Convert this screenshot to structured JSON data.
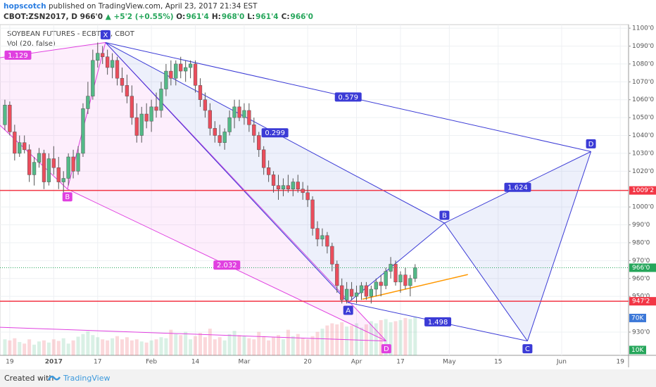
{
  "header": {
    "author": "hopscotch",
    "published": "published on TradingView.com, April 23, 2017 21:34 EST",
    "symbol": "CBOT:ZSN2017, D",
    "price": "966'0",
    "change": "▲ +5'2 (+0.55%)",
    "ohlc": [
      "O:",
      "961'4",
      "H:",
      "968'0",
      "L:",
      "961'4",
      "C:",
      "966'0"
    ]
  },
  "footer": {
    "created": "Created with",
    "brand": "TradingView"
  },
  "chart_data": {
    "type": "candlestick",
    "title": "SOYBEAN FUTURES - ECBT, D, CBOT",
    "indicator": "Vol (20, false)",
    "up_color": "#53b987",
    "down_color": "#eb4d5c",
    "x": [
      -1,
      0,
      1,
      2,
      3,
      4,
      5,
      6,
      7,
      8,
      9,
      10,
      11,
      12,
      13,
      14,
      15,
      16,
      17,
      18,
      19,
      20,
      21,
      22,
      23,
      24,
      25,
      26,
      27,
      28,
      29,
      30,
      31,
      32,
      33,
      34,
      35,
      36,
      37,
      38,
      39,
      40,
      41,
      42,
      43,
      44,
      45,
      46,
      47,
      48,
      49,
      50,
      51,
      52,
      53,
      54,
      55,
      56,
      57,
      58,
      59,
      60,
      61,
      62,
      63,
      64,
      65,
      66,
      67,
      68,
      69,
      70,
      71,
      72,
      73,
      74,
      75,
      76,
      77,
      78,
      79,
      80,
      81,
      82,
      83
    ],
    "open": [
      1046,
      1057,
      1042,
      1030,
      1036,
      1032,
      1018,
      1025,
      1030,
      1014,
      1027,
      1022,
      1014,
      1016,
      1028,
      1020,
      1030,
      1055,
      1062,
      1082,
      1086,
      1084,
      1078,
      1082,
      1072,
      1068,
      1062,
      1050,
      1040,
      1052,
      1048,
      1056,
      1054,
      1066,
      1076,
      1072,
      1080,
      1076,
      1078,
      1080,
      1068,
      1060,
      1054,
      1044,
      1040,
      1036,
      1042,
      1050,
      1056,
      1050,
      1054,
      1046,
      1040,
      1032,
      1022,
      1018,
      1012,
      1010,
      1012,
      1010,
      1014,
      1010,
      1008,
      1004,
      988,
      982,
      984,
      978,
      968,
      956,
      948,
      954,
      950,
      952,
      956,
      950,
      954,
      958,
      956,
      964,
      968,
      958,
      962,
      956,
      960
    ],
    "high": [
      1060,
      1059,
      1046,
      1040,
      1040,
      1035,
      1028,
      1033,
      1032,
      1030,
      1034,
      1028,
      1020,
      1030,
      1032,
      1034,
      1058,
      1070,
      1088,
      1092,
      1090,
      1088,
      1086,
      1084,
      1078,
      1074,
      1068,
      1058,
      1056,
      1058,
      1060,
      1064,
      1070,
      1080,
      1082,
      1082,
      1084,
      1082,
      1082,
      1082,
      1072,
      1064,
      1058,
      1048,
      1046,
      1044,
      1054,
      1060,
      1060,
      1058,
      1058,
      1050,
      1042,
      1034,
      1026,
      1020,
      1018,
      1016,
      1018,
      1016,
      1018,
      1014,
      1012,
      1006,
      992,
      988,
      986,
      980,
      970,
      960,
      958,
      958,
      956,
      958,
      958,
      956,
      960,
      962,
      966,
      972,
      970,
      964,
      966,
      962,
      968
    ],
    "low": [
      1043,
      1040,
      1026,
      1028,
      1030,
      1014,
      1012,
      1022,
      1010,
      1012,
      1018,
      1010,
      1008,
      1012,
      1016,
      1018,
      1028,
      1052,
      1060,
      1078,
      1080,
      1074,
      1072,
      1068,
      1064,
      1058,
      1046,
      1036,
      1036,
      1044,
      1042,
      1050,
      1050,
      1062,
      1068,
      1068,
      1072,
      1070,
      1072,
      1064,
      1056,
      1050,
      1040,
      1036,
      1034,
      1032,
      1040,
      1044,
      1048,
      1046,
      1042,
      1036,
      1028,
      1018,
      1014,
      1008,
      1004,
      1006,
      1008,
      1006,
      1008,
      1004,
      1000,
      984,
      978,
      978,
      974,
      964,
      952,
      946,
      946,
      948,
      946,
      948,
      948,
      946,
      950,
      950,
      954,
      960,
      956,
      952,
      954,
      950,
      958
    ],
    "close": [
      1057,
      1042,
      1030,
      1036,
      1032,
      1018,
      1025,
      1030,
      1014,
      1027,
      1022,
      1014,
      1016,
      1028,
      1020,
      1030,
      1055,
      1062,
      1082,
      1086,
      1084,
      1078,
      1082,
      1072,
      1068,
      1062,
      1050,
      1040,
      1052,
      1048,
      1056,
      1054,
      1066,
      1076,
      1072,
      1080,
      1076,
      1078,
      1080,
      1068,
      1060,
      1054,
      1044,
      1040,
      1036,
      1042,
      1050,
      1056,
      1050,
      1054,
      1046,
      1040,
      1032,
      1022,
      1018,
      1012,
      1010,
      1012,
      1010,
      1014,
      1010,
      1008,
      1004,
      988,
      982,
      984,
      978,
      968,
      956,
      948,
      954,
      950,
      952,
      956,
      950,
      954,
      958,
      956,
      964,
      968,
      958,
      962,
      956,
      960,
      966
    ],
    "volume": [
      30,
      28,
      32,
      25,
      22,
      30,
      20,
      26,
      28,
      24,
      30,
      27,
      32,
      22,
      28,
      35,
      40,
      45,
      38,
      34,
      30,
      28,
      32,
      36,
      30,
      34,
      28,
      30,
      26,
      24,
      28,
      30,
      34,
      32,
      48,
      40,
      38,
      44,
      30,
      36,
      42,
      34,
      50,
      30,
      34,
      28,
      40,
      46,
      38,
      36,
      32,
      30,
      44,
      36,
      28,
      34,
      38,
      30,
      48,
      36,
      40,
      32,
      30,
      36,
      44,
      50,
      56,
      60,
      58,
      62,
      54,
      56,
      60,
      52,
      58,
      64,
      60,
      66,
      68,
      62,
      64,
      66,
      70,
      68,
      72
    ],
    "xlim": [
      -2,
      126.7
    ],
    "xticks": [
      {
        "value": 0,
        "label": "19"
      },
      {
        "value": 9,
        "label": "2017"
      },
      {
        "value": 18,
        "label": "17"
      },
      {
        "value": 29,
        "label": "Feb"
      },
      {
        "value": 38,
        "label": "14"
      },
      {
        "value": 48,
        "label": "Mar"
      },
      {
        "value": 61,
        "label": "20"
      },
      {
        "value": 71,
        "label": "Apr"
      },
      {
        "value": 80,
        "label": "17"
      },
      {
        "value": 90,
        "label": "May"
      },
      {
        "value": 100,
        "label": "15"
      },
      {
        "value": 113,
        "label": "Jun"
      },
      {
        "value": 125,
        "label": "19"
      }
    ],
    "ylim": [
      917,
      1102
    ],
    "yticks": [
      {
        "value": 1100,
        "label": "1100'0"
      },
      {
        "value": 1090,
        "label": "1090'0"
      },
      {
        "value": 1080,
        "label": "1080'0"
      },
      {
        "value": 1070,
        "label": "1070'0"
      },
      {
        "value": 1060,
        "label": "1060'0"
      },
      {
        "value": 1050,
        "label": "1050'0"
      },
      {
        "value": 1040,
        "label": "1040'0"
      },
      {
        "value": 1030,
        "label": "1030'0"
      },
      {
        "value": 1020,
        "label": "1020'0"
      },
      {
        "value": 1000,
        "label": "1000'0"
      },
      {
        "value": 990,
        "label": "990'0"
      },
      {
        "value": 980,
        "label": "980'0"
      },
      {
        "value": 970,
        "label": "970'0"
      },
      {
        "value": 960,
        "label": "960'0"
      },
      {
        "value": 950,
        "label": "950'0"
      },
      {
        "value": 930,
        "label": "930'0"
      }
    ],
    "y2lim": [
      0,
      620
    ],
    "y2ticks": [
      {
        "value": 70,
        "label": "70K",
        "color": "#3c78d8"
      },
      {
        "value": 10,
        "label": "10K",
        "color": "#26a65b"
      }
    ],
    "last_price": {
      "value": 966,
      "label": "966'0",
      "color": "#26a65b"
    },
    "hlines": [
      {
        "value": 1009.25,
        "label": "1009'2",
        "color": "#f23645"
      },
      {
        "value": 947.25,
        "label": "947'2",
        "color": "#f23645"
      }
    ],
    "trendline": {
      "x": [
        72.2,
        93.8
      ],
      "y": [
        948.4,
        962.2
      ],
      "color": "#ff9800"
    },
    "patterns": [
      {
        "color": "#e040e0",
        "fill": "rgba(236,120,230,0.13)",
        "points": [
          {
            "x": -2,
            "y": 1083.5
          },
          {
            "x": -2,
            "y": 1045.7
          },
          {
            "x": 11.8,
            "y": 1010,
            "label": "B"
          },
          {
            "x": 19.6,
            "y": 1092
          },
          {
            "x": 77.1,
            "y": 925,
            "label": "D"
          },
          {
            "x": -2,
            "y": 932.7
          }
        ],
        "lines": [
          [
            0,
            3
          ],
          [
            1,
            2
          ],
          [
            2,
            3
          ],
          [
            3,
            4
          ],
          [
            2,
            4
          ],
          [
            5,
            4
          ]
        ],
        "fills": [
          [
            1,
            2,
            3,
            0
          ],
          [
            2,
            3,
            4
          ]
        ],
        "ratios": [
          {
            "line": 0,
            "label": "1.129",
            "at": 0.17
          },
          {
            "line": 4,
            "label": "2.032",
            "at": 0.5
          }
        ]
      },
      {
        "color": "#3b3bd6",
        "fill": "rgba(110,130,225,0.12)",
        "points": [
          {
            "x": 19.6,
            "y": 1092,
            "label": "X"
          },
          {
            "x": 69.3,
            "y": 946.5,
            "label": "A"
          },
          {
            "x": 89,
            "y": 991,
            "label": "B"
          },
          {
            "x": 106,
            "y": 925,
            "label": "C"
          },
          {
            "x": 119,
            "y": 1031,
            "label": "D"
          }
        ],
        "lines": [
          [
            0,
            1
          ],
          [
            1,
            2
          ],
          [
            2,
            3
          ],
          [
            3,
            4
          ],
          [
            0,
            2
          ],
          [
            0,
            4
          ],
          [
            2,
            4
          ],
          [
            1,
            3
          ]
        ],
        "fills": [
          [
            0,
            1,
            2
          ],
          [
            2,
            3,
            4
          ]
        ],
        "ratios": [
          {
            "line": 4,
            "label": "0.299",
            "at": 0.5
          },
          {
            "line": 5,
            "label": "0.579",
            "at": 0.5
          },
          {
            "line": 6,
            "label": "1.624",
            "at": 0.5
          },
          {
            "line": 7,
            "label": "1.498",
            "at": 0.5
          }
        ]
      }
    ]
  }
}
